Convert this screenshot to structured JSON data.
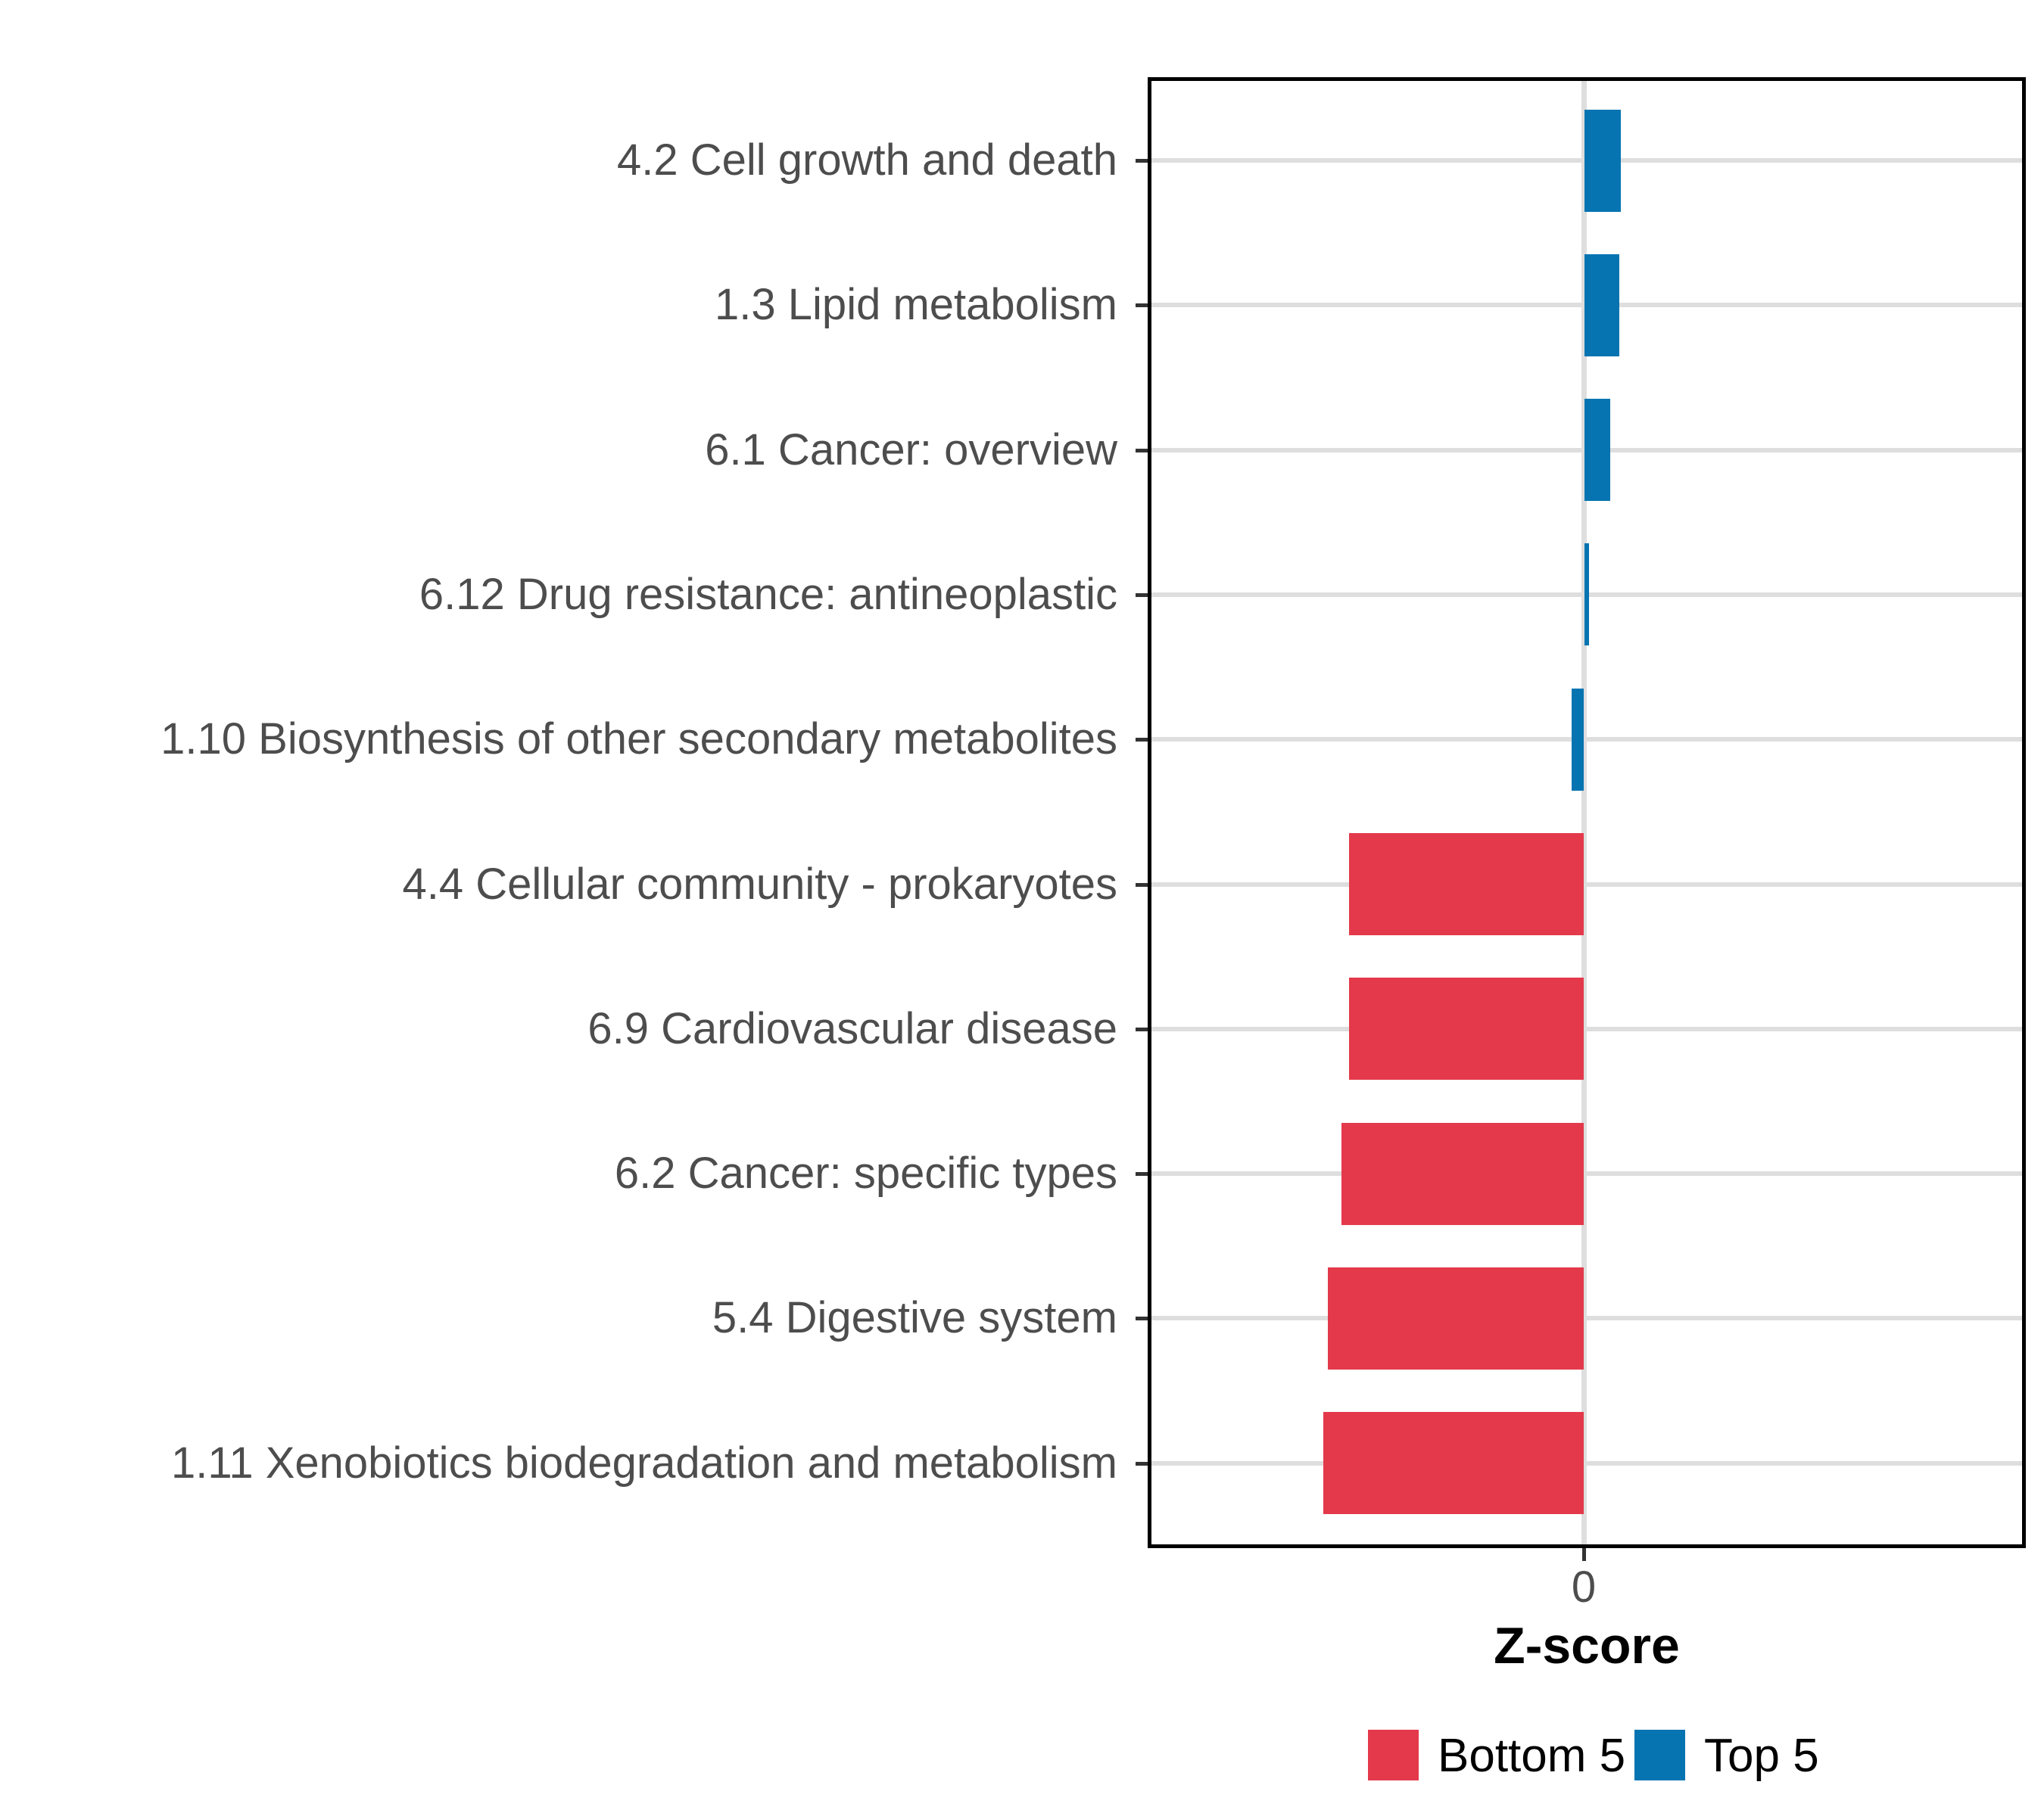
{
  "chart_data": {
    "type": "bar",
    "orientation": "horizontal",
    "title": "",
    "xlabel": "Z-score",
    "ylabel": "",
    "grid": true,
    "legend_position": "bottom",
    "xlim": [
      -2.88,
      2.92
    ],
    "x_ticks": [
      {
        "value": 0,
        "label": "0"
      }
    ],
    "categories": [
      "4.2 Cell growth and death",
      "1.3 Lipid metabolism",
      "6.1 Cancer: overview",
      "6.12 Drug resistance: antineoplastic",
      "1.10 Biosynthesis of other secondary metabolites",
      "4.4 Cellular community - prokaryotes",
      "6.9 Cardiovascular disease",
      "6.2 Cancer: specific types",
      "5.4 Digestive system",
      "1.11 Xenobiotics biodegradation and metabolism"
    ],
    "values": [
      0.24,
      0.23,
      0.17,
      0.03,
      -0.08,
      -1.55,
      -1.55,
      -1.6,
      -1.69,
      -1.72
    ],
    "bar_groups": [
      "Top 5",
      "Top 5",
      "Top 5",
      "Top 5",
      "Top 5",
      "Bottom 5",
      "Bottom 5",
      "Bottom 5",
      "Bottom 5",
      "Bottom 5"
    ],
    "groups": [
      {
        "name": "Bottom 5",
        "color": "#E4394B"
      },
      {
        "name": "Top 5",
        "color": "#0674B1"
      }
    ]
  },
  "axis": {
    "x_title": "Z-score",
    "zero_tick_label": "0"
  },
  "legend": {
    "items": [
      {
        "label": "Bottom 5",
        "color": "#E4394B"
      },
      {
        "label": "Top 5",
        "color": "#0674B1"
      }
    ]
  },
  "colors": {
    "bottom5": "#E4394B",
    "top5": "#0674B1",
    "gridline": "#DEDEDE",
    "axis_text": "#4D4D4D",
    "panel_border": "#000000"
  }
}
